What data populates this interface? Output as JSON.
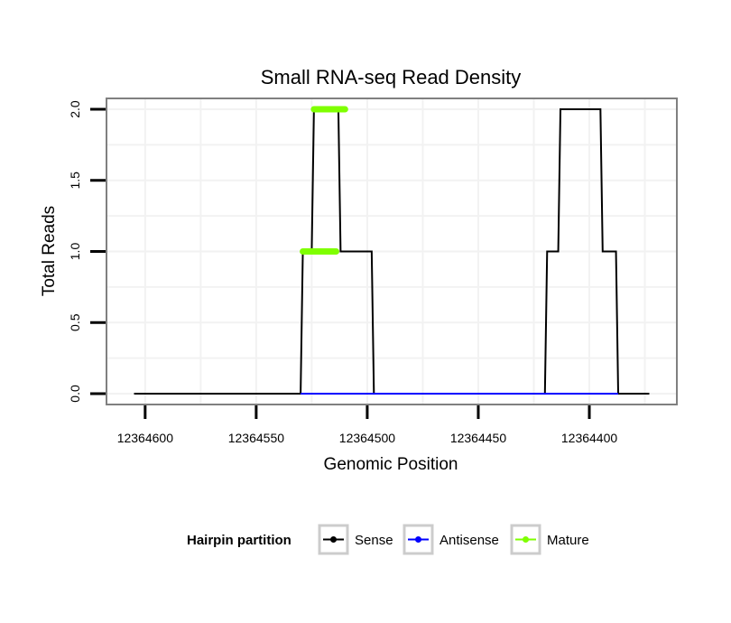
{
  "chart_data": {
    "type": "line",
    "title": "Small RNA-seq Read Density",
    "xlabel": "Genomic Position",
    "ylabel": "Total Reads",
    "x_reversed": true,
    "xlim": [
      12364617,
      12364361
    ],
    "ylim": [
      -0.07,
      2.07
    ],
    "xticks": [
      12364600,
      12364550,
      12364500,
      12364450,
      12364400
    ],
    "xtick_labels": [
      "12364600",
      "12364550",
      "12364500",
      "12364450",
      "12364400"
    ],
    "yticks": [
      0.0,
      0.5,
      1.0,
      1.5,
      2.0
    ],
    "ytick_labels": [
      "0.0",
      "0.5",
      "1.0",
      "1.5",
      "2.0"
    ],
    "grid": true,
    "series": [
      {
        "name": "Sense",
        "color": "#000000",
        "points": [
          [
            12364605,
            0
          ],
          [
            12364530,
            0
          ],
          [
            12364529,
            1
          ],
          [
            12364525,
            1
          ],
          [
            12364524,
            2
          ],
          [
            12364513,
            2
          ],
          [
            12364512,
            1
          ],
          [
            12364498,
            1
          ],
          [
            12364497,
            0
          ],
          [
            12364420,
            0
          ],
          [
            12364419,
            1
          ],
          [
            12364414,
            1
          ],
          [
            12364413,
            2
          ],
          [
            12364395,
            2
          ],
          [
            12364394,
            1
          ],
          [
            12364388,
            1
          ],
          [
            12364387,
            0
          ],
          [
            12364373,
            0
          ]
        ]
      },
      {
        "name": "Antisense",
        "color": "#0000ff",
        "points": [
          [
            12364530,
            0
          ],
          [
            12364497,
            0
          ],
          [
            12364420,
            0
          ],
          [
            12364387,
            0
          ]
        ]
      },
      {
        "name": "Mature",
        "color": "#7fff00",
        "segments": [
          [
            [
              12364529,
              1
            ],
            [
              12364514,
              1
            ]
          ],
          [
            [
              12364524,
              2
            ],
            [
              12364510,
              2
            ]
          ]
        ]
      }
    ],
    "legend": {
      "title": "Hairpin partition",
      "placement": "bottom",
      "entries": [
        "Sense",
        "Antisense",
        "Mature"
      ]
    }
  }
}
